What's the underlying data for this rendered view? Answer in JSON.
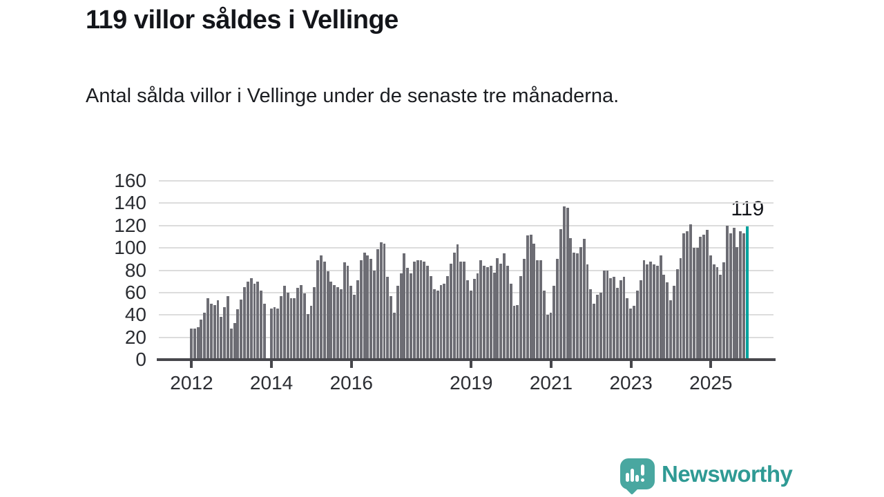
{
  "header": {
    "title": "119 villor såldes i Vellinge",
    "subtitle": "Antal sålda villor i Vellinge under de senaste tre månaderna."
  },
  "chart_data": {
    "type": "bar",
    "title": "119 villor såldes i Vellinge",
    "xlabel": "",
    "ylabel": "",
    "ylim": [
      0,
      160
    ],
    "y_ticks": [
      0,
      20,
      40,
      60,
      80,
      100,
      120,
      140,
      160
    ],
    "x_tick_labels": [
      "2012",
      "2014",
      "2016",
      "2019",
      "2021",
      "2023",
      "2025"
    ],
    "x_tick_months": [
      0,
      24,
      48,
      84,
      108,
      132,
      156
    ],
    "frequency": "monthly",
    "grid": true,
    "values": [
      28,
      28,
      29,
      36,
      42,
      55,
      50,
      49,
      53,
      38,
      47,
      57,
      28,
      33,
      45,
      54,
      65,
      70,
      73,
      68,
      70,
      62,
      50,
      0,
      46,
      47,
      46,
      57,
      66,
      60,
      55,
      55,
      64,
      67,
      59,
      41,
      48,
      65,
      89,
      93,
      88,
      79,
      70,
      67,
      65,
      63,
      87,
      84,
      66,
      58,
      71,
      89,
      96,
      93,
      90,
      80,
      99,
      105,
      104,
      74,
      57,
      42,
      66,
      77,
      95,
      82,
      77,
      88,
      89,
      89,
      88,
      84,
      75,
      63,
      62,
      67,
      68,
      75,
      86,
      96,
      103,
      88,
      88,
      71,
      62,
      72,
      77,
      89,
      84,
      83,
      84,
      78,
      91,
      86,
      95,
      84,
      68,
      48,
      49,
      75,
      90,
      111,
      112,
      104,
      89,
      89,
      62,
      40,
      42,
      66,
      90,
      117,
      137,
      136,
      109,
      96,
      95,
      101,
      108,
      85,
      63,
      50,
      58,
      60,
      80,
      80,
      73,
      74,
      64,
      71,
      74,
      55,
      46,
      48,
      62,
      71,
      89,
      85,
      88,
      85,
      84,
      93,
      76,
      69,
      53,
      66,
      81,
      91,
      113,
      115,
      121,
      100,
      100,
      110,
      112,
      116,
      93,
      85,
      83,
      76,
      87,
      120,
      113,
      118,
      101,
      115,
      113,
      119
    ],
    "highlight_index": 167,
    "highlight_label": "119",
    "colors": {
      "bar": "#6d6d74",
      "highlight": "#00a29d",
      "gridline": "#dcdcdc",
      "axis": "#47474c",
      "text": "#2c2e33"
    }
  },
  "footer": {
    "brand": "Newsworthy",
    "brand_color": "#2f9a94"
  }
}
